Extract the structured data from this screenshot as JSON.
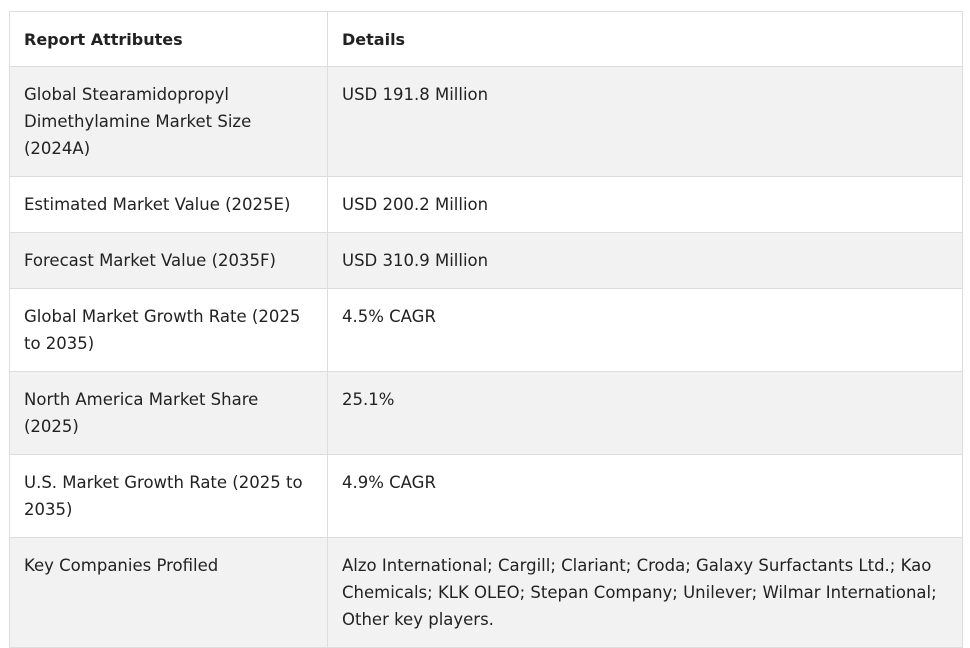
{
  "table": {
    "headers": [
      "Report Attributes",
      "Details"
    ],
    "rows": [
      {
        "attribute": "Global Stearamidopropyl Dimethylamine Market Size (2024A)",
        "detail": "USD 191.8 Million"
      },
      {
        "attribute": "Estimated Market Value (2025E)",
        "detail": "USD 200.2 Million"
      },
      {
        "attribute": "Forecast Market Value (2035F)",
        "detail": "USD 310.9 Million"
      },
      {
        "attribute": "Global Market Growth Rate (2025 to 2035)",
        "detail": "4.5% CAGR"
      },
      {
        "attribute": "North America Market Share (2025)",
        "detail": "25.1%"
      },
      {
        "attribute": "U.S. Market Growth Rate (2025 to 2035)",
        "detail": "4.9% CAGR"
      },
      {
        "attribute": "Key Companies Profiled",
        "detail": "Alzo International; Cargill; Clariant; Croda; Galaxy Surfactants Ltd.; Kao Chemicals; KLK OLEO; Stepan Company; Unilever; Wilmar International; Other key players."
      }
    ]
  },
  "colors": {
    "border": "#dddddd",
    "stripe": "#f2f2f2",
    "text": "#222222"
  }
}
